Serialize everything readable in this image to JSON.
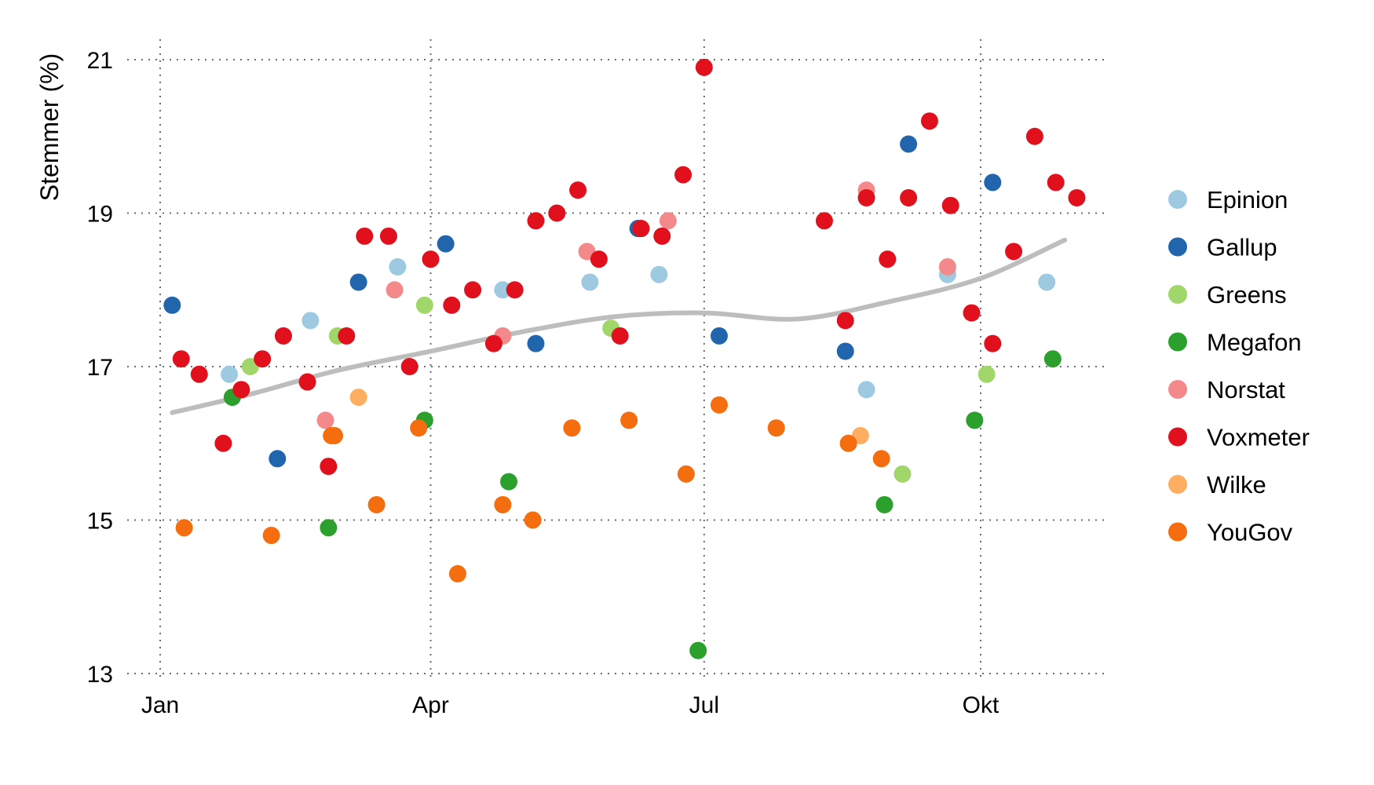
{
  "chart_data": {
    "type": "scatter",
    "title": "",
    "xlabel": "",
    "ylabel": "Stemmer (%)",
    "ylim": [
      13,
      21.2
    ],
    "xlim": [
      "2018-12-23",
      "2019-11-08"
    ],
    "yticks": [
      13,
      15,
      17,
      19,
      21
    ],
    "xticks": [
      {
        "date": "2019-01-01",
        "label": "Jan"
      },
      {
        "date": "2019-04-01",
        "label": "Apr"
      },
      {
        "date": "2019-07-01",
        "label": "Jul"
      },
      {
        "date": "2019-10-01",
        "label": "Okt"
      }
    ],
    "grid": true,
    "legend_position": "right",
    "trend": {
      "name": "",
      "color": "#bdbdbd",
      "points": [
        {
          "x": "2019-01-05",
          "y": 16.4
        },
        {
          "x": "2019-02-01",
          "y": 16.65
        },
        {
          "x": "2019-03-01",
          "y": 16.95
        },
        {
          "x": "2019-04-01",
          "y": 17.2
        },
        {
          "x": "2019-05-01",
          "y": 17.45
        },
        {
          "x": "2019-06-01",
          "y": 17.65
        },
        {
          "x": "2019-07-01",
          "y": 17.7
        },
        {
          "x": "2019-08-01",
          "y": 17.62
        },
        {
          "x": "2019-09-01",
          "y": 17.85
        },
        {
          "x": "2019-10-01",
          "y": 18.15
        },
        {
          "x": "2019-10-29",
          "y": 18.65
        }
      ]
    },
    "series": [
      {
        "name": "Epinion",
        "color": "#9ecae1",
        "points": [
          {
            "x": "2019-01-24",
            "y": 16.9
          },
          {
            "x": "2019-02-20",
            "y": 17.6
          },
          {
            "x": "2019-03-21",
            "y": 18.3
          },
          {
            "x": "2019-04-25",
            "y": 18.0
          },
          {
            "x": "2019-05-24",
            "y": 18.1
          },
          {
            "x": "2019-06-16",
            "y": 18.2
          },
          {
            "x": "2019-08-24",
            "y": 16.7
          },
          {
            "x": "2019-09-20",
            "y": 18.2
          },
          {
            "x": "2019-10-23",
            "y": 18.1
          }
        ]
      },
      {
        "name": "Gallup",
        "color": "#2166ac",
        "points": [
          {
            "x": "2019-01-05",
            "y": 17.8
          },
          {
            "x": "2019-02-09",
            "y": 15.8
          },
          {
            "x": "2019-03-08",
            "y": 18.1
          },
          {
            "x": "2019-04-06",
            "y": 18.6
          },
          {
            "x": "2019-05-06",
            "y": 17.3
          },
          {
            "x": "2019-06-09",
            "y": 18.8
          },
          {
            "x": "2019-07-06",
            "y": 17.4
          },
          {
            "x": "2019-08-17",
            "y": 17.2
          },
          {
            "x": "2019-09-07",
            "y": 19.9
          },
          {
            "x": "2019-10-05",
            "y": 19.4
          }
        ]
      },
      {
        "name": "Greens",
        "color": "#a1d76a",
        "points": [
          {
            "x": "2019-01-31",
            "y": 17.0
          },
          {
            "x": "2019-03-01",
            "y": 17.4
          },
          {
            "x": "2019-03-30",
            "y": 17.8
          },
          {
            "x": "2019-05-31",
            "y": 17.5
          },
          {
            "x": "2019-09-05",
            "y": 15.6
          },
          {
            "x": "2019-10-03",
            "y": 16.9
          }
        ]
      },
      {
        "name": "Megafon",
        "color": "#2ca02c",
        "points": [
          {
            "x": "2019-01-25",
            "y": 16.6
          },
          {
            "x": "2019-02-26",
            "y": 14.9
          },
          {
            "x": "2019-03-30",
            "y": 16.3
          },
          {
            "x": "2019-04-27",
            "y": 15.5
          },
          {
            "x": "2019-06-29",
            "y": 13.3
          },
          {
            "x": "2019-08-30",
            "y": 15.2
          },
          {
            "x": "2019-09-29",
            "y": 16.3
          },
          {
            "x": "2019-10-25",
            "y": 17.1
          }
        ]
      },
      {
        "name": "Norstat",
        "color": "#f4898b",
        "points": [
          {
            "x": "2019-02-25",
            "y": 16.3
          },
          {
            "x": "2019-03-20",
            "y": 18.0
          },
          {
            "x": "2019-04-25",
            "y": 17.4
          },
          {
            "x": "2019-05-23",
            "y": 18.5
          },
          {
            "x": "2019-06-19",
            "y": 18.9
          },
          {
            "x": "2019-08-24",
            "y": 19.3
          },
          {
            "x": "2019-09-20",
            "y": 18.3
          }
        ]
      },
      {
        "name": "Voxmeter",
        "color": "#e0101c",
        "points": [
          {
            "x": "2019-01-08",
            "y": 17.1
          },
          {
            "x": "2019-01-14",
            "y": 16.9
          },
          {
            "x": "2019-01-22",
            "y": 16.0
          },
          {
            "x": "2019-01-28",
            "y": 16.7
          },
          {
            "x": "2019-02-04",
            "y": 17.1
          },
          {
            "x": "2019-02-11",
            "y": 17.4
          },
          {
            "x": "2019-02-19",
            "y": 16.8
          },
          {
            "x": "2019-02-26",
            "y": 15.7
          },
          {
            "x": "2019-03-04",
            "y": 17.4
          },
          {
            "x": "2019-03-10",
            "y": 18.7
          },
          {
            "x": "2019-03-18",
            "y": 18.7
          },
          {
            "x": "2019-03-25",
            "y": 17.0
          },
          {
            "x": "2019-04-01",
            "y": 18.4
          },
          {
            "x": "2019-04-08",
            "y": 17.8
          },
          {
            "x": "2019-04-15",
            "y": 18.0
          },
          {
            "x": "2019-04-22",
            "y": 17.3
          },
          {
            "x": "2019-04-29",
            "y": 18.0
          },
          {
            "x": "2019-05-06",
            "y": 18.9
          },
          {
            "x": "2019-05-13",
            "y": 19.0
          },
          {
            "x": "2019-05-20",
            "y": 19.3
          },
          {
            "x": "2019-05-27",
            "y": 18.4
          },
          {
            "x": "2019-06-03",
            "y": 17.4
          },
          {
            "x": "2019-06-10",
            "y": 18.8
          },
          {
            "x": "2019-06-17",
            "y": 18.7
          },
          {
            "x": "2019-06-24",
            "y": 19.5
          },
          {
            "x": "2019-07-01",
            "y": 20.9
          },
          {
            "x": "2019-08-10",
            "y": 18.9
          },
          {
            "x": "2019-08-17",
            "y": 17.6
          },
          {
            "x": "2019-08-24",
            "y": 19.2
          },
          {
            "x": "2019-08-31",
            "y": 18.4
          },
          {
            "x": "2019-09-07",
            "y": 19.2
          },
          {
            "x": "2019-09-14",
            "y": 20.2
          },
          {
            "x": "2019-09-21",
            "y": 19.1
          },
          {
            "x": "2019-09-28",
            "y": 17.7
          },
          {
            "x": "2019-10-05",
            "y": 17.3
          },
          {
            "x": "2019-10-12",
            "y": 18.5
          },
          {
            "x": "2019-10-19",
            "y": 20.0
          },
          {
            "x": "2019-10-26",
            "y": 19.4
          },
          {
            "x": "2019-11-02",
            "y": 19.2
          }
        ]
      },
      {
        "name": "Wilke",
        "color": "#fdae61",
        "points": [
          {
            "x": "2019-03-08",
            "y": 16.6
          },
          {
            "x": "2019-08-22",
            "y": 16.1
          }
        ]
      },
      {
        "name": "YouGov",
        "color": "#f46d0e",
        "points": [
          {
            "x": "2019-01-09",
            "y": 14.9
          },
          {
            "x": "2019-02-07",
            "y": 14.8
          },
          {
            "x": "2019-02-27",
            "y": 16.1
          },
          {
            "x": "2019-02-28",
            "y": 16.1
          },
          {
            "x": "2019-03-14",
            "y": 15.2
          },
          {
            "x": "2019-03-28",
            "y": 16.2
          },
          {
            "x": "2019-04-10",
            "y": 14.3
          },
          {
            "x": "2019-04-25",
            "y": 15.2
          },
          {
            "x": "2019-05-05",
            "y": 15.0
          },
          {
            "x": "2019-05-18",
            "y": 16.2
          },
          {
            "x": "2019-06-06",
            "y": 16.3
          },
          {
            "x": "2019-06-25",
            "y": 15.6
          },
          {
            "x": "2019-07-06",
            "y": 16.5
          },
          {
            "x": "2019-07-25",
            "y": 16.2
          },
          {
            "x": "2019-08-18",
            "y": 16.0
          },
          {
            "x": "2019-08-29",
            "y": 15.8
          }
        ]
      }
    ]
  }
}
